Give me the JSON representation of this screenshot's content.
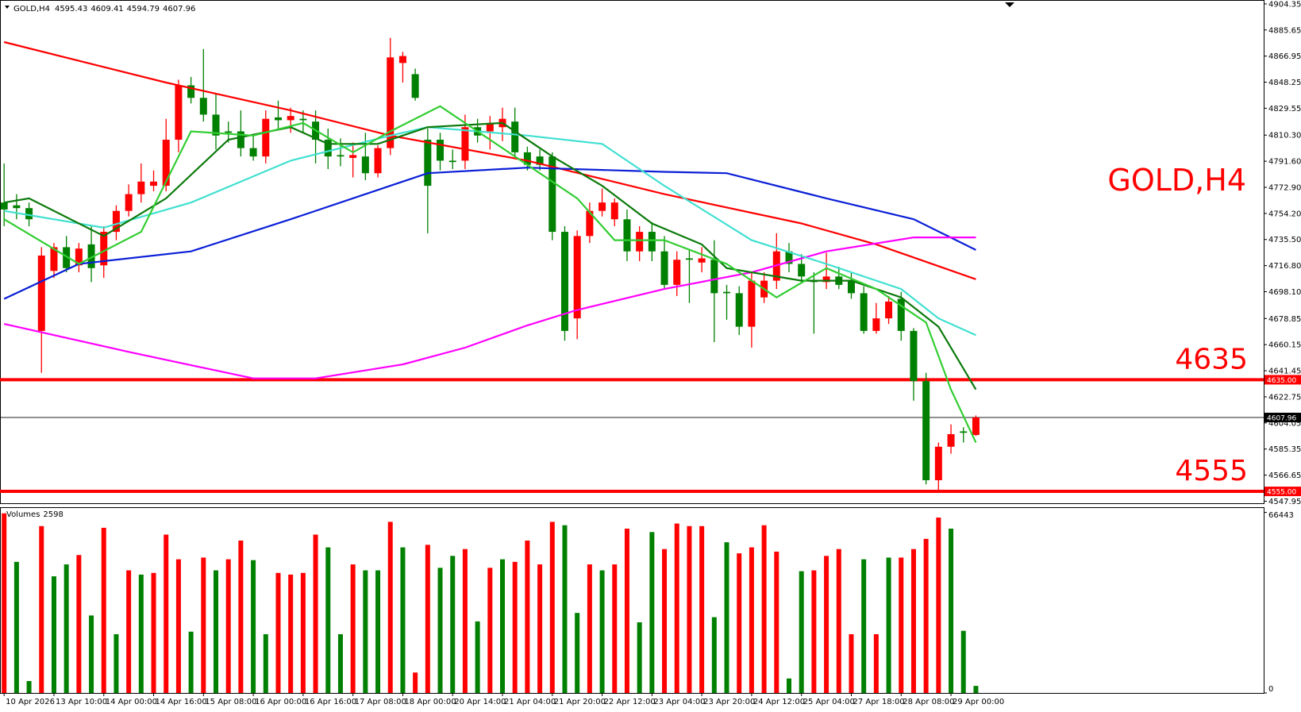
{
  "chart_data": {
    "type": "candlestick",
    "title": "GOLD,H4",
    "up_color": "#ff0000",
    "down_color": "#008000",
    "candles": [
      [
        4762,
        4790,
        4745,
        4757
      ],
      [
        4760,
        4768,
        4750,
        4758
      ],
      [
        4758,
        4762,
        4745,
        4750
      ],
      [
        4670,
        4730,
        4640,
        4724
      ],
      [
        4713,
        4733,
        4708,
        4730
      ],
      [
        4730,
        4738,
        4712,
        4715
      ],
      [
        4717,
        4733,
        4712,
        4729
      ],
      [
        4732,
        4745,
        4705,
        4715
      ],
      [
        4717,
        4745,
        4708,
        4741
      ],
      [
        4741,
        4760,
        4735,
        4756
      ],
      [
        4756,
        4775,
        4752,
        4768
      ],
      [
        4768,
        4790,
        4762,
        4777
      ],
      [
        4774,
        4785,
        4770,
        4777
      ],
      [
        4774,
        4822,
        4770,
        4807
      ],
      [
        4807,
        4850,
        4798,
        4846
      ],
      [
        4846,
        4852,
        4833,
        4837
      ],
      [
        4837,
        4872,
        4820,
        4825
      ],
      [
        4825,
        4840,
        4800,
        4810
      ],
      [
        4813,
        4820,
        4805,
        4812
      ],
      [
        4813,
        4828,
        4795,
        4801
      ],
      [
        4801,
        4810,
        4792,
        4795
      ],
      [
        4795,
        4828,
        4790,
        4822
      ],
      [
        4823,
        4835,
        4815,
        4821
      ],
      [
        4821,
        4830,
        4812,
        4824
      ],
      [
        4822,
        4828,
        4812,
        4821
      ],
      [
        4820,
        4828,
        4790,
        4807
      ],
      [
        4807,
        4815,
        4786,
        4795
      ],
      [
        4796,
        4808,
        4788,
        4795
      ],
      [
        4794,
        4805,
        4780,
        4796
      ],
      [
        4795,
        4812,
        4778,
        4783
      ],
      [
        4783,
        4803,
        4780,
        4801
      ],
      [
        4801,
        4880,
        4796,
        4866
      ],
      [
        4862,
        4870,
        4848,
        4867
      ],
      [
        4854,
        4858,
        4835,
        4837
      ],
      [
        4807,
        4815,
        4740,
        4774
      ],
      [
        4807,
        4812,
        4785,
        4792
      ],
      [
        4792,
        4800,
        4786,
        4791
      ],
      [
        4792,
        4825,
        4786,
        4816
      ],
      [
        4816,
        4822,
        4805,
        4810
      ],
      [
        4813,
        4824,
        4800,
        4819
      ],
      [
        4816,
        4830,
        4806,
        4822
      ],
      [
        4820,
        4830,
        4795,
        4798
      ],
      [
        4798,
        4802,
        4785,
        4789
      ],
      [
        4795,
        4800,
        4785,
        4789
      ],
      [
        4795,
        4798,
        4735,
        4741
      ],
      [
        4741,
        4745,
        4663,
        4670
      ],
      [
        4679,
        4742,
        4664,
        4738
      ],
      [
        4738,
        4762,
        4733,
        4756
      ],
      [
        4756,
        4772,
        4752,
        4762
      ],
      [
        4750,
        4765,
        4745,
        4762
      ],
      [
        4750,
        4757,
        4720,
        4727
      ],
      [
        4727,
        4745,
        4720,
        4741
      ],
      [
        4741,
        4748,
        4720,
        4727
      ],
      [
        4727,
        4738,
        4700,
        4703
      ],
      [
        4703,
        4727,
        4695,
        4721
      ],
      [
        4722,
        4728,
        4690,
        4721
      ],
      [
        4719,
        4730,
        4712,
        4722
      ],
      [
        4721,
        4735,
        4662,
        4697
      ],
      [
        4698,
        4703,
        4678,
        4697
      ],
      [
        4697,
        4702,
        4667,
        4673
      ],
      [
        4673,
        4712,
        4658,
        4706
      ],
      [
        4694,
        4712,
        4690,
        4706
      ],
      [
        4706,
        4740,
        4700,
        4727
      ],
      [
        4727,
        4733,
        4712,
        4718
      ],
      [
        4718,
        4725,
        4705,
        4709
      ],
      [
        4706,
        4712,
        4668,
        4705
      ],
      [
        4705,
        4726,
        4700,
        4709
      ],
      [
        4709,
        4716,
        4700,
        4703
      ],
      [
        4706,
        4712,
        4693,
        4697
      ],
      [
        4697,
        4702,
        4668,
        4670
      ],
      [
        4670,
        4690,
        4668,
        4679
      ],
      [
        4679,
        4695,
        4675,
        4691
      ],
      [
        4693,
        4698,
        4663,
        4670
      ],
      [
        4670,
        4672,
        4620,
        4634
      ],
      [
        4634,
        4640,
        4560,
        4563
      ],
      [
        4563,
        4590,
        4555,
        4587
      ],
      [
        4587,
        4603,
        4582,
        4596
      ],
      [
        4598,
        4601,
        4590,
        4597
      ],
      [
        4595.43,
        4609.41,
        4594.79,
        4607.96
      ]
    ],
    "ylim": [
      4546.5,
      4906
    ],
    "yticks": [
      4904.35,
      4885.65,
      4866.95,
      4848.25,
      4829.55,
      {
        "value": 4810.3,
        "label": "4810.30"
      },
      {
        "value": 4791.6,
        "label": "4791.60"
      },
      {
        "value": 4772.9,
        "label": "4772.90"
      },
      {
        "value": 4754.2,
        "label": "4754.20"
      },
      {
        "value": 4735.5,
        "label": "4735.50"
      },
      {
        "value": 4716.8,
        "label": "4716.80"
      },
      {
        "value": 4698.1,
        "label": "4698.10"
      },
      4678.85,
      4660.15,
      4641.45,
      4622.75,
      4604.05,
      4585.35,
      4566.65,
      4547.95
    ],
    "xlim": [
      -0.33,
      101.1
    ],
    "xticks": [
      {
        "value": 0,
        "label": "10 Apr 2026"
      },
      {
        "value": 4,
        "label": "13 Apr 10:00"
      },
      {
        "value": 8,
        "label": "14 Apr 00:00"
      },
      {
        "value": 12,
        "label": "14 Apr 16:00"
      },
      {
        "value": 16,
        "label": "15 Apr 08:00"
      },
      {
        "value": 20,
        "label": "16 Apr 00:00"
      },
      {
        "value": 24,
        "label": "16 Apr 16:00"
      },
      {
        "value": 28,
        "label": "17 Apr 08:00"
      },
      {
        "value": 32,
        "label": "18 Apr 00:00"
      },
      {
        "value": 36,
        "label": "20 Apr 14:00"
      },
      {
        "value": 40,
        "label": "21 Apr 04:00"
      },
      {
        "value": 44,
        "label": "21 Apr 20:00"
      },
      {
        "value": 48,
        "label": "22 Apr 12:00"
      },
      {
        "value": 52,
        "label": "23 Apr 04:00"
      },
      {
        "value": 56,
        "label": "23 Apr 20:00"
      },
      {
        "value": 60,
        "label": "24 Apr 12:00"
      },
      {
        "value": 64,
        "label": "25 Apr 04:00"
      },
      {
        "value": 68,
        "label": "27 Apr 18:00"
      },
      {
        "value": 72,
        "label": "28 Apr 08:00"
      },
      {
        "value": 76,
        "label": "29 Apr 00:00"
      }
    ],
    "moving_averages": [
      {
        "color": "#ff0000",
        "x": [
          0,
          13,
          23,
          31,
          42,
          53,
          64,
          70,
          78
        ],
        "values": [
          4877,
          4848,
          4828,
          4810,
          4792,
          4768,
          4747,
          4732,
          4707
        ]
      },
      {
        "color": "#0a1fd6",
        "x": [
          0,
          6,
          15,
          23,
          30,
          34,
          42,
          53,
          58,
          66,
          73,
          78
        ],
        "values": [
          4693,
          4718,
          4727,
          4750,
          4771,
          4783,
          4787,
          4784,
          4783,
          4765,
          4750,
          4728
        ]
      },
      {
        "color": "#ff00ff",
        "x": [
          0,
          10,
          20,
          25,
          32,
          37,
          42,
          46,
          53,
          60,
          66,
          73,
          78
        ],
        "values": [
          4675,
          4655,
          4636,
          4636,
          4646,
          4658,
          4674,
          4685,
          4700,
          4712,
          4727,
          4737,
          4737
        ]
      },
      {
        "color": "#40e0d0",
        "x": [
          0,
          8,
          15,
          23,
          31,
          34,
          42,
          48,
          53,
          60,
          66,
          72,
          75,
          78
        ],
        "values": [
          4756,
          4744,
          4762,
          4792,
          4810,
          4816,
          4810,
          4804,
          4774,
          4735,
          4718,
          4700,
          4679,
          4667
        ]
      },
      {
        "color": "#0b7a0b",
        "x": [
          0,
          2,
          8,
          13,
          18,
          23,
          26,
          30,
          34,
          40,
          44,
          48,
          52,
          56,
          58,
          64,
          68,
          72,
          75,
          78
        ],
        "values": [
          4762,
          4765,
          4738,
          4765,
          4807,
          4816,
          4804,
          4804,
          4816,
          4819,
          4795,
          4774,
          4747,
          4732,
          4715,
          4706,
          4706,
          4694,
          4673,
          4628
        ]
      },
      {
        "color": "#32cd32",
        "x": [
          0,
          6,
          11,
          15,
          20,
          24,
          28,
          31,
          35,
          38,
          42,
          46,
          49,
          53,
          58,
          62,
          66,
          70,
          74,
          76,
          78
        ],
        "values": [
          4750,
          4718,
          4741,
          4813,
          4810,
          4819,
          4798,
          4813,
          4831,
          4813,
          4789,
          4765,
          4735,
          4735,
          4718,
          4694,
          4715,
          4700,
          4676,
          4628,
          4590
        ]
      }
    ],
    "levels": [
      4635,
      4555
    ],
    "level_labels": [
      "4635.00",
      "4555.00"
    ],
    "level_color": "#ff0000",
    "volume_title": "Volumes",
    "volumes": [
      66127,
      48264,
      4388,
      61426,
      42936,
      47323,
      50771,
      28519,
      60800,
      21625,
      45130,
      43563,
      44189,
      58292,
      49204,
      22565,
      49831,
      45130,
      49204,
      56099,
      48890,
      21625,
      44189,
      43563,
      44189,
      58292,
      53591,
      21625,
      47323,
      45130,
      45130,
      62993,
      53591,
      7522,
      54532,
      46070,
      50457,
      52965,
      26326,
      46070,
      49204,
      48264,
      56099,
      47323,
      62993,
      61740,
      29460,
      47323,
      45130,
      47323,
      60486,
      26012,
      59233,
      52965,
      62367,
      61426,
      61426,
      27893,
      55472,
      51398,
      53591,
      61740,
      52024,
      5328,
      44816,
      45130,
      50457,
      52965,
      21625,
      49204,
      21625,
      49831,
      49831,
      52965,
      56725,
      64560,
      60486,
      22878,
      2598
    ],
    "volume_colors": [
      "#ff0000",
      "#008000",
      "#008000",
      "#ff0000",
      "#008000",
      "#008000",
      "#ff0000",
      "#008000",
      "#ff0000",
      "#008000",
      "#ff0000",
      "#008000",
      "#ff0000",
      "#ff0000",
      "#ff0000",
      "#008000",
      "#ff0000",
      "#008000",
      "#ff0000",
      "#ff0000",
      "#008000",
      "#008000",
      "#ff0000",
      "#ff0000",
      "#ff0000",
      "#ff0000",
      "#008000",
      "#008000",
      "#ff0000",
      "#008000",
      "#008000",
      "#ff0000",
      "#008000",
      "#ff0000",
      "#ff0000",
      "#008000",
      "#008000",
      "#ff0000",
      "#008000",
      "#ff0000",
      "#008000",
      "#ff0000",
      "#ff0000",
      "#ff0000",
      "#ff0000",
      "#008000",
      "#008000",
      "#ff0000",
      "#008000",
      "#ff0000",
      "#ff0000",
      "#008000",
      "#008000",
      "#ff0000",
      "#ff0000",
      "#ff0000",
      "#ff0000",
      "#008000",
      "#008000",
      "#ff0000",
      "#ff0000",
      "#ff0000",
      "#ff0000",
      "#008000",
      "#008000",
      "#ff0000",
      "#ff0000",
      "#ff0000",
      "#ff0000",
      "#008000",
      "#ff0000",
      "#008000",
      "#ff0000",
      "#ff0000",
      "#ff0000",
      "#ff0000",
      "#008000",
      "#008000",
      "#008000"
    ],
    "volume_ylim": [
      0,
      67500
    ],
    "volume_yticks": [
      66443,
      0
    ]
  }
}
